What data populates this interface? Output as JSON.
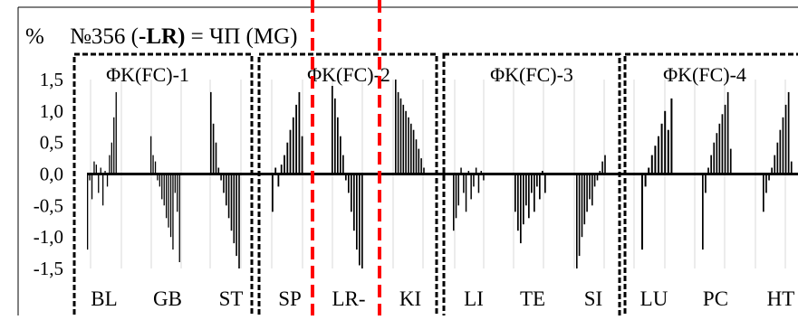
{
  "title": {
    "unit": "%",
    "prefix": "№356 (",
    "bold": "-LR)",
    "suffix": " = ЧП (MG)"
  },
  "colors": {
    "bars": "#000000",
    "grid": "#d9d9d9",
    "marker": "#ff0000",
    "frame": "#000000"
  },
  "chart_data": {
    "type": "bar",
    "ylim": [
      -1.5,
      1.5
    ],
    "yticks": [
      "1,5",
      "1,0",
      "0,5",
      "0,0",
      "-0,5",
      "-1,0",
      "-1,5"
    ],
    "grid": "vertical",
    "groups": [
      {
        "label": "ΦK(FC)-1",
        "categories": [
          "BL",
          "GB",
          "ST"
        ]
      },
      {
        "label": "ΦK(FC)-2",
        "categories": [
          "SP",
          "LR-",
          "KI"
        ]
      },
      {
        "label": "ΦK(FC)-3",
        "categories": [
          "LI",
          "TE",
          "SI"
        ]
      },
      {
        "label": "ΦK(FC)-4",
        "categories": [
          "LU",
          "PC",
          "HT"
        ]
      }
    ],
    "series": [
      {
        "category": "BL",
        "values": [
          -1.2,
          -0.1,
          -0.4,
          0.2,
          0.15,
          -0.3,
          0.1,
          -0.5,
          0.05,
          -0.2,
          0.3,
          0.5,
          0.9,
          1.3
        ]
      },
      {
        "category": "GB",
        "values": [
          0.6,
          0.3,
          0.2,
          -0.1,
          -0.2,
          -0.4,
          -0.5,
          -0.7,
          -0.85,
          -1.0,
          -1.2,
          -0.3,
          -0.6,
          -1.4
        ]
      },
      {
        "category": "ST",
        "values": [
          1.3,
          0.8,
          0.5,
          0.1,
          -0.1,
          -0.3,
          -0.5,
          -0.7,
          -0.9,
          -1.1,
          -1.3,
          -1.5
        ]
      },
      {
        "category": "SP",
        "values": [
          -0.6,
          0.1,
          -0.2,
          0.15,
          0.3,
          0.5,
          0.7,
          0.9,
          1.1,
          1.3,
          0.6
        ]
      },
      {
        "category": "LR-",
        "values": [
          1.4,
          1.2,
          0.9,
          0.6,
          0.3,
          -0.1,
          -0.3,
          -0.6,
          -0.9,
          -1.2,
          -1.45,
          -1.5
        ]
      },
      {
        "category": "KI",
        "values": [
          1.5,
          1.3,
          1.2,
          1.1,
          1.0,
          0.9,
          0.8,
          0.7,
          0.55,
          0.4,
          0.25,
          0.1
        ]
      },
      {
        "category": "LI",
        "values": [
          -0.9,
          -0.7,
          -0.5,
          0.1,
          -0.3,
          -0.6,
          0.05,
          -0.4,
          -0.2,
          0.1,
          -0.3,
          0.05,
          -0.1
        ]
      },
      {
        "category": "TE",
        "values": [
          -0.6,
          -0.9,
          -1.1,
          -0.8,
          -0.5,
          -0.7,
          -0.3,
          -0.6,
          -0.2,
          -0.4,
          0.05,
          -0.3
        ]
      },
      {
        "category": "SI",
        "values": [
          -1.5,
          -1.3,
          -1.0,
          -0.8,
          -0.6,
          -0.4,
          -0.5,
          -0.2,
          -0.1,
          0.05,
          0.2,
          0.3
        ]
      },
      {
        "category": "LU",
        "values": [
          -1.2,
          -0.2,
          0.1,
          0.3,
          0.45,
          0.6,
          0.8,
          1.0,
          0.7,
          1.2
        ]
      },
      {
        "category": "PC",
        "values": [
          -1.2,
          -0.3,
          0.1,
          0.3,
          0.5,
          0.65,
          0.8,
          0.95,
          1.1,
          1.3,
          0.4
        ]
      },
      {
        "category": "HT",
        "values": [
          -0.6,
          -0.3,
          -0.1,
          0.1,
          0.3,
          0.5,
          0.7,
          0.9,
          1.1,
          1.3,
          0.2
        ]
      }
    ]
  }
}
